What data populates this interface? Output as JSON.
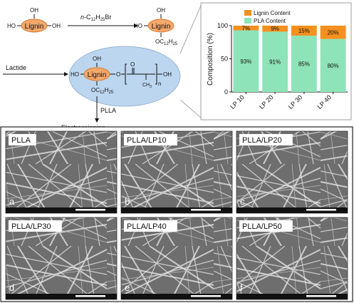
{
  "scheme": {
    "lignin_label": "Lignin",
    "oh": "OH",
    "ho": "HO",
    "reagent_prefix": "n",
    "reagent_rest": "-C",
    "reagent_sub1": "12",
    "reagent_h": "H",
    "reagent_sub2": "25",
    "reagent_br": "Br",
    "oc": "OC",
    "sub12": "12",
    "h": "H",
    "sub25": "25",
    "lactide": "Lactide",
    "o": "O",
    "ch3": "CH",
    "sub3": "3",
    "n": "n",
    "plla": "PLLA",
    "electrospinning": "Electrospinning"
  },
  "chart_data": {
    "type": "bar",
    "stacked": true,
    "categories": [
      "LP 10",
      "LP 20",
      "LP 30",
      "LP 40"
    ],
    "series": [
      {
        "name": "PLA Content",
        "values": [
          93,
          91,
          85,
          80
        ],
        "labels": [
          "93%",
          "91%",
          "85%",
          "80%"
        ],
        "color": "#8fe3b8"
      },
      {
        "name": "Lignin Content",
        "values": [
          7,
          9,
          15,
          20
        ],
        "labels": [
          "7%",
          "9%",
          "15%",
          "20%"
        ],
        "color": "#f4901e"
      }
    ],
    "ylabel": "Composition (%)",
    "ylim": [
      0,
      100
    ],
    "yticks": [
      "0",
      "50",
      "100"
    ],
    "legend": "top",
    "grid": false
  },
  "sem_panels": [
    {
      "title": "PLLA",
      "letter": "a"
    },
    {
      "title": "PLLA/LP10",
      "letter": "b"
    },
    {
      "title": "PLLA/LP20",
      "letter": "c"
    },
    {
      "title": "PLLA/LP30",
      "letter": "d"
    },
    {
      "title": "PLLA/LP40",
      "letter": "e"
    },
    {
      "title": "PLLA/LP50",
      "letter": "f"
    }
  ],
  "colors": {
    "lignin_fill": "#f4a86b",
    "lignin_stroke": "#d9772e",
    "ellipse": "#bcd6f0",
    "frame": "#222222"
  }
}
